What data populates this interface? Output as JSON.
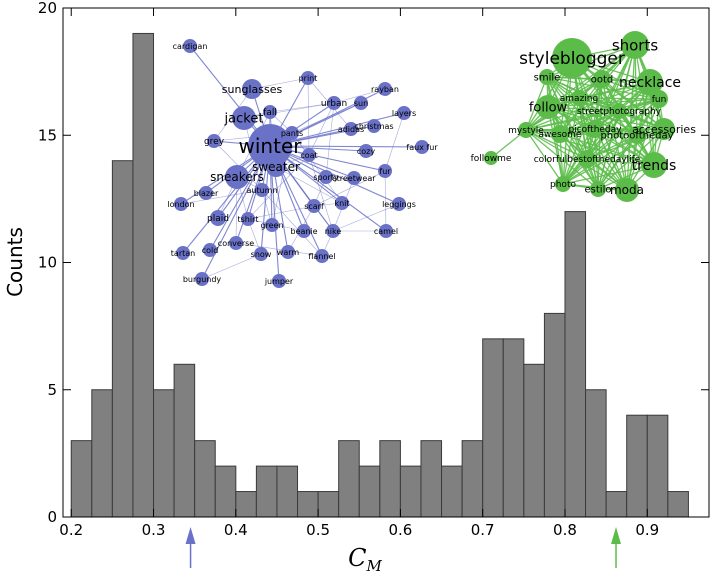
{
  "chart_data": {
    "type": "bar",
    "subtype": "histogram",
    "ylabel": "Counts",
    "xlabel": "C",
    "xlabel_subscript": "M",
    "xlim": [
      0.19,
      0.975
    ],
    "ylim": [
      0,
      20
    ],
    "bin_width": 0.025,
    "bin_start": 0.2,
    "values": [
      3,
      5,
      14,
      19,
      5,
      6,
      3,
      2,
      1,
      2,
      2,
      1,
      1,
      3,
      2,
      3,
      2,
      3,
      2,
      3,
      7,
      7,
      6,
      8,
      12,
      5,
      1,
      4,
      4,
      1
    ],
    "xticks": [
      0.2,
      0.3,
      0.4,
      0.5,
      0.6,
      0.7,
      0.8,
      0.9
    ],
    "xtick_labels": [
      "0.2",
      "0.3",
      "0.4",
      "0.5",
      "0.6",
      "0.7",
      "0.8",
      "0.9"
    ],
    "yticks": [
      0,
      5,
      10,
      15,
      20
    ],
    "ytick_labels": [
      "0",
      "5",
      "10",
      "15",
      "20"
    ],
    "markers": [
      {
        "name": "low-cm-arrow",
        "x": 0.345,
        "color": "#6a72c8"
      },
      {
        "name": "high-cm-arrow",
        "x": 0.862,
        "color": "#5cbc4a"
      }
    ],
    "insets": [
      {
        "name": "winter-network",
        "color": "#6a72c8",
        "hub": "winter",
        "words": [
          "cardigan",
          "print",
          "rayban",
          "sunglasses",
          "fall",
          "urban",
          "sun",
          "layers",
          "jacket",
          "adidas",
          "christmas",
          "pants",
          "grey",
          "winter",
          "faux fur",
          "coat",
          "cozy",
          "sweater",
          "fur",
          "sneakers",
          "sporty",
          "streetwear",
          "autumn",
          "blazer",
          "london",
          "scarf",
          "knit",
          "leggings",
          "plaid",
          "tshirt",
          "green",
          "beanie",
          "nike",
          "camel",
          "converse",
          "cold",
          "tartan",
          "snow",
          "warm",
          "flannel",
          "burgundy",
          "jumper"
        ]
      },
      {
        "name": "styleblogger-network",
        "color": "#5cbc4a",
        "words": [
          "shorts",
          "styleblogger",
          "smile",
          "ootd",
          "necklace",
          "follow",
          "amazing",
          "fun",
          "streetphotography",
          "picoftheday",
          "accessories",
          "mystyle",
          "awesome",
          "photooftheday",
          "followme",
          "colorfulbestofthedaylife",
          "trends",
          "photo",
          "estilo",
          "moda"
        ]
      }
    ]
  }
}
